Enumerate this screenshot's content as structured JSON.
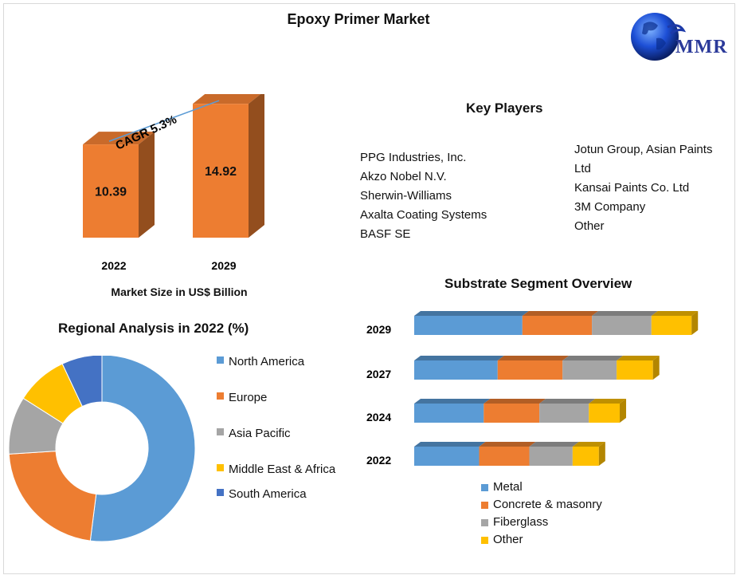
{
  "title": "Epoxy Primer Market",
  "logo": {
    "text": "MMR"
  },
  "market_size": {
    "xlabel": "Market Size in US$ Billion",
    "cagr_label": "CAGR 5.3%"
  },
  "key_players": {
    "title": "Key Players",
    "col1": [
      "PPG Industries, Inc.",
      "Akzo Nobel N.V.",
      "Sherwin-Williams",
      "Axalta Coating Systems",
      "BASF SE"
    ],
    "col2": [
      "Jotun Group, Asian Paints Ltd",
      "Kansai Paints Co. Ltd",
      "3M Company",
      "Other"
    ]
  },
  "regional": {
    "title": "Regional Analysis in 2022 (%)"
  },
  "substrate": {
    "title": "Substrate Segment Overview"
  },
  "colors": {
    "blue": "#5b9bd5",
    "orange": "#ed7d31",
    "gray": "#a5a5a5",
    "yellow": "#ffc000",
    "darkblue": "#4472c4"
  },
  "chart_data": [
    {
      "type": "bar",
      "categories": [
        "2022",
        "2029"
      ],
      "values": [
        10.39,
        14.92
      ],
      "data_labels": [
        "10.39",
        "14.92"
      ],
      "xlabel": "Market Size in US$ Billion",
      "annotation": "CAGR 5.3%",
      "color": "#ed7d31"
    },
    {
      "type": "pie",
      "title": "Regional Analysis in 2022 (%)",
      "labels": [
        "North America",
        "Europe",
        "Asia Pacific",
        "Middle East & Africa",
        "South America"
      ],
      "values": [
        52,
        22,
        10,
        9,
        7
      ],
      "colors": [
        "#5b9bd5",
        "#ed7d31",
        "#a5a5a5",
        "#ffc000",
        "#4472c4"
      ],
      "legend": "right"
    },
    {
      "type": "bar",
      "orientation": "horizontal",
      "stacked": true,
      "title": "Substrate Segment Overview",
      "categories": [
        "2029",
        "2027",
        "2024",
        "2022"
      ],
      "series": [
        {
          "name": "Metal",
          "values": [
            140,
            108,
            90,
            84
          ],
          "color": "#5b9bd5"
        },
        {
          "name": "Concrete & masonry",
          "values": [
            90,
            84,
            72,
            65
          ],
          "color": "#ed7d31"
        },
        {
          "name": "Fiberglass",
          "values": [
            77,
            70,
            64,
            56
          ],
          "color": "#a5a5a5"
        },
        {
          "name": "Other",
          "values": [
            52,
            47,
            40,
            34
          ],
          "color": "#ffc000"
        }
      ],
      "legend": "bottom"
    }
  ]
}
